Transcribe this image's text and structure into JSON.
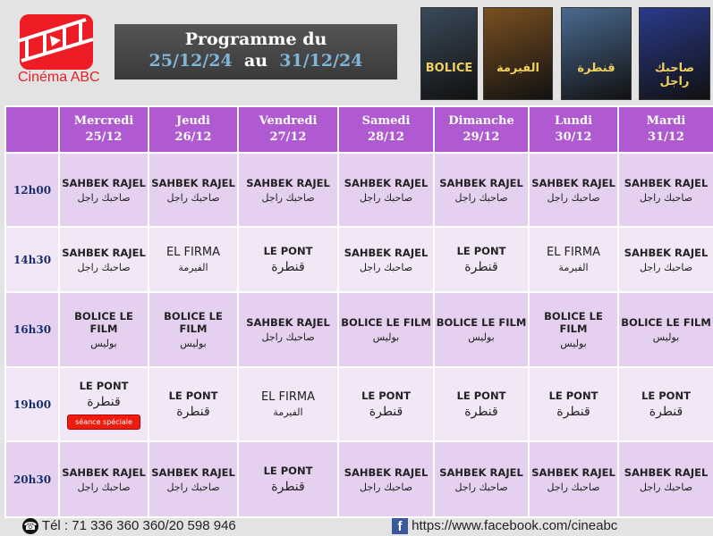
{
  "brand": {
    "name": "Cinéma ABC",
    "color": "#ee1c25"
  },
  "header": {
    "title": "Programme du",
    "start": "25/12/24",
    "sep": "au",
    "end": "31/12/24"
  },
  "posters": [
    {
      "title": "BOLICE",
      "color": "#3a4a5a"
    },
    {
      "title": "الفيرمة",
      "color": "#7a5020"
    },
    {
      "title": "قنطرة",
      "color": "#4a6a90"
    },
    {
      "title": "صاحبك راجل",
      "color": "#2a3a8a"
    }
  ],
  "days": [
    {
      "name": "Mercredi",
      "date": "25/12"
    },
    {
      "name": "Jeudi",
      "date": "26/12"
    },
    {
      "name": "Vendredi",
      "date": "27/12"
    },
    {
      "name": "Samedi",
      "date": "28/12"
    },
    {
      "name": "Dimanche",
      "date": "29/12"
    },
    {
      "name": "Lundi",
      "date": "30/12"
    },
    {
      "name": "Mardi",
      "date": "31/12"
    }
  ],
  "films": {
    "S": {
      "fr": "SAHBEK RAJEL",
      "ar": "صاحبك راجل"
    },
    "F": {
      "fr": "EL FIRMA",
      "ar": "الفيرمة"
    },
    "P": {
      "fr": "LE PONT",
      "ar": "قنطرة"
    },
    "B": {
      "fr": "BOLICE LE FILM",
      "ar": "بوليس"
    }
  },
  "schedule": [
    {
      "time": "12h00",
      "films": [
        "S",
        "S",
        "S",
        "S",
        "S",
        "S",
        "S"
      ]
    },
    {
      "time": "14h30",
      "films": [
        "S",
        "F",
        "P",
        "S",
        "P",
        "F",
        "S"
      ]
    },
    {
      "time": "16h30",
      "films": [
        "B",
        "B",
        "S",
        "B",
        "B",
        "B",
        "B"
      ]
    },
    {
      "time": "19h00",
      "films": [
        "P",
        "P",
        "F",
        "P",
        "P",
        "P",
        "P"
      ]
    },
    {
      "time": "20h30",
      "films": [
        "S",
        "S",
        "P",
        "S",
        "S",
        "S",
        "S"
      ]
    }
  ],
  "special": {
    "label": "séance spéciale",
    "row": 3,
    "col": 0
  },
  "footer": {
    "phone": "Tél : 71 336 360 360/20 598 946",
    "facebook": "https://www.facebook.com/cineabc"
  }
}
